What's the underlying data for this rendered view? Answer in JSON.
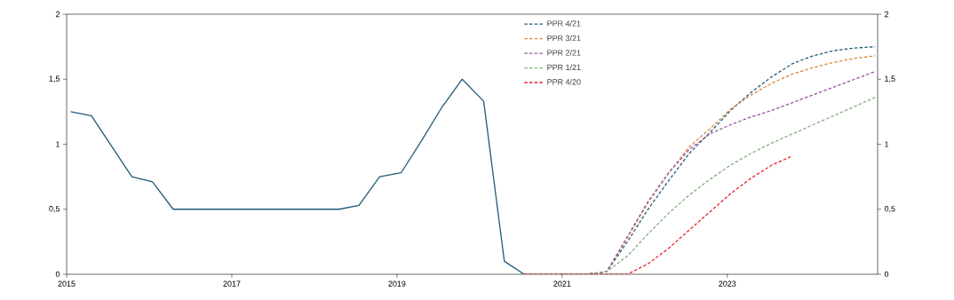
{
  "chart_data": {
    "type": "line",
    "xlim": [
      2015,
      2024.82
    ],
    "xticks": [
      2015,
      2017,
      2019,
      2021,
      2023
    ],
    "ylim": [
      0,
      2
    ],
    "yticks": [
      {
        "value": 0,
        "label": "0"
      },
      {
        "value": 0.5,
        "label": "0,5"
      },
      {
        "value": 1,
        "label": "1"
      },
      {
        "value": 1.5,
        "label": "1,5"
      },
      {
        "value": 2,
        "label": "2"
      }
    ],
    "y2lim": [
      0,
      2
    ],
    "y2ticks": [
      {
        "value": 0,
        "label": "0"
      },
      {
        "value": 0.5,
        "label": "0,5"
      },
      {
        "value": 1,
        "label": "1"
      },
      {
        "value": 1.5,
        "label": "1,5"
      },
      {
        "value": 2,
        "label": "2"
      }
    ],
    "grid": false,
    "legend": "top",
    "marker": "none",
    "series": [
      {
        "color": "#1f5a78",
        "line_style": "solid",
        "x": [
          2015.05,
          2015.3,
          2015.79,
          2016.04,
          2016.29,
          2018.3,
          2018.54,
          2018.79,
          2019.05,
          2019.29,
          2019.54,
          2019.79,
          2020.05,
          2020.3,
          2020.54
        ],
        "values": [
          1.25,
          1.22,
          0.75,
          0.71,
          0.5,
          0.5,
          0.53,
          0.75,
          0.78,
          1.02,
          1.28,
          1.5,
          1.33,
          0.1,
          0
        ]
      },
      {
        "name": "PPR 4/21",
        "color": "#1f5a78",
        "line_style": "dashed",
        "x": [
          2020.54,
          2020.79,
          2021.04,
          2021.29,
          2021.54,
          2021.79,
          2022.04,
          2022.29,
          2022.54,
          2022.79,
          2023.04,
          2023.29,
          2023.54,
          2023.79,
          2024.04,
          2024.29,
          2024.54,
          2024.79
        ],
        "values": [
          0,
          0,
          0,
          0,
          0.02,
          0.25,
          0.5,
          0.72,
          0.93,
          1.09,
          1.26,
          1.4,
          1.52,
          1.62,
          1.68,
          1.72,
          1.74,
          1.75
        ]
      },
      {
        "name": "PPR 3/21",
        "color": "#d9883a",
        "line_style": "dashed",
        "x": [
          2020.54,
          2020.79,
          2021.04,
          2021.29,
          2021.54,
          2021.79,
          2022.04,
          2022.29,
          2022.54,
          2022.79,
          2023.04,
          2023.29,
          2023.54,
          2023.79,
          2024.04,
          2024.29,
          2024.54,
          2024.79
        ],
        "values": [
          0,
          0,
          0,
          0,
          0.02,
          0.28,
          0.55,
          0.78,
          0.98,
          1.12,
          1.27,
          1.38,
          1.47,
          1.54,
          1.59,
          1.63,
          1.66,
          1.68
        ]
      },
      {
        "name": "PPR 2/21",
        "color": "#9b56a0",
        "line_style": "dashed",
        "x": [
          2020.54,
          2020.79,
          2021.04,
          2021.29,
          2021.54,
          2021.79,
          2022.04,
          2022.29,
          2022.54,
          2022.79,
          2023.04,
          2023.29,
          2023.54,
          2023.79,
          2024.04,
          2024.29,
          2024.54,
          2024.79
        ],
        "values": [
          0,
          0,
          0,
          0,
          0.02,
          0.29,
          0.56,
          0.78,
          0.96,
          1.08,
          1.15,
          1.21,
          1.26,
          1.32,
          1.38,
          1.44,
          1.5,
          1.56
        ]
      },
      {
        "name": "PPR 1/21",
        "color": "#7fb07a",
        "line_style": "dashed",
        "x": [
          2020.54,
          2020.79,
          2021.04,
          2021.29,
          2021.54,
          2021.79,
          2022.04,
          2022.29,
          2022.54,
          2022.79,
          2023.04,
          2023.29,
          2023.54,
          2023.79,
          2024.04,
          2024.29,
          2024.54,
          2024.79
        ],
        "values": [
          0,
          0,
          0,
          0,
          0.02,
          0.14,
          0.31,
          0.47,
          0.61,
          0.73,
          0.84,
          0.93,
          1.01,
          1.08,
          1.15,
          1.22,
          1.29,
          1.36
        ]
      },
      {
        "name": "PPR 4/20",
        "color": "#e8202a",
        "line_style": "dashed",
        "x": [
          2020.54,
          2020.79,
          2021.04,
          2021.29,
          2021.54,
          2021.79,
          2022.04,
          2022.29,
          2022.54,
          2022.79,
          2023.04,
          2023.29,
          2023.54,
          2023.79
        ],
        "values": [
          0,
          0,
          0,
          0,
          0,
          0,
          0.08,
          0.2,
          0.34,
          0.48,
          0.62,
          0.74,
          0.84,
          0.91
        ]
      }
    ]
  }
}
